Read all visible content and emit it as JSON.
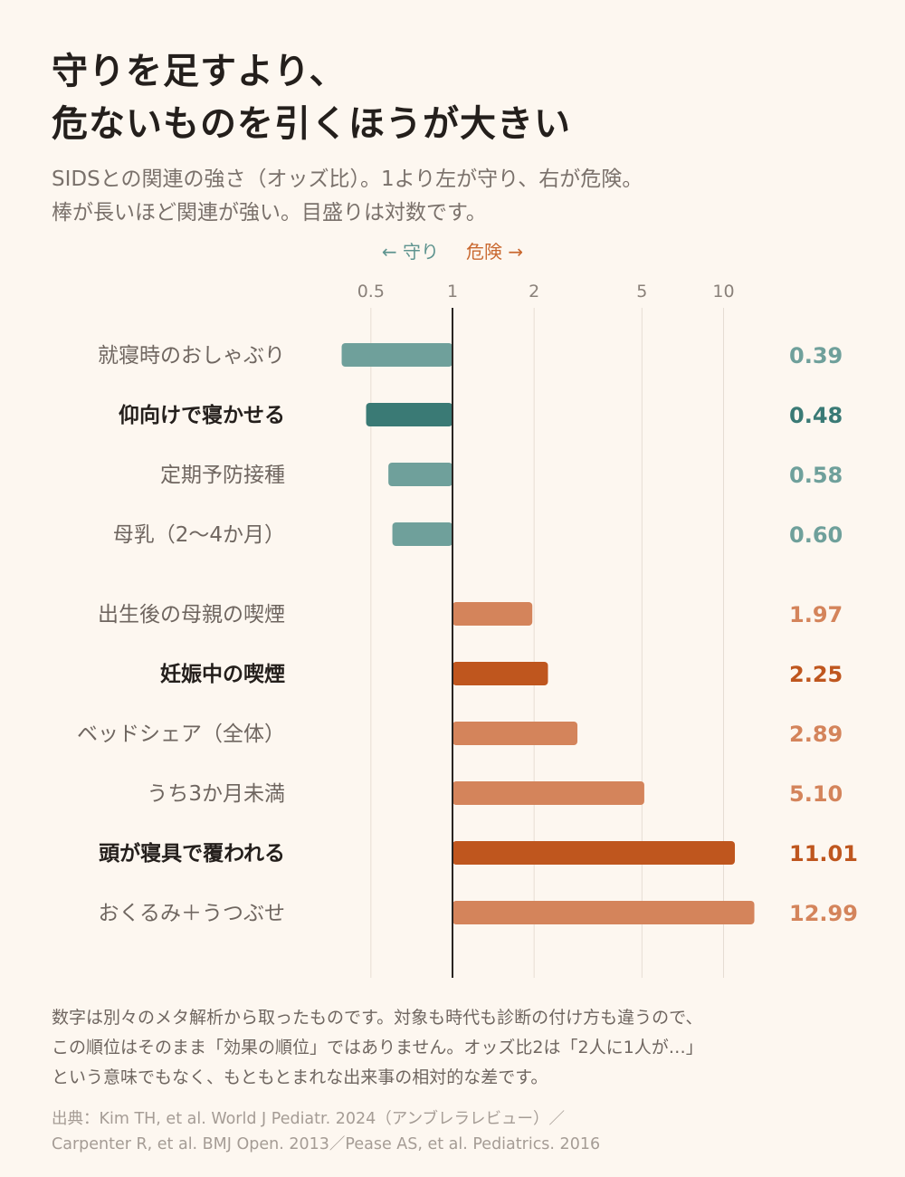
{
  "title": {
    "line1": "守りを足すより、",
    "line2": "危ないものを引くほうが大きい"
  },
  "subtitle": {
    "line1": "SIDSとの関連の強さ（オッズ比）。1より左が守り、右が危険。",
    "line2": "棒が長いほど関連が強い。目盛りは対数です。"
  },
  "direction": {
    "protective": "← 守り",
    "risk": "危険 →"
  },
  "colors": {
    "protective": "#6fa09b",
    "protective_strong": "#3a7a75",
    "risk": "#d4845b",
    "risk_strong": "#bf561e",
    "axis": "#2a2522",
    "grid": "#e6ddd3"
  },
  "chart_data": {
    "type": "bar",
    "orientation": "horizontal",
    "scale": "log",
    "reference_value": 1,
    "xlim": [
      0.3,
      14
    ],
    "ticks": [
      {
        "value": 0.5,
        "label": "0.5"
      },
      {
        "value": 1,
        "label": "1"
      },
      {
        "value": 2,
        "label": "2"
      },
      {
        "value": 5,
        "label": "5"
      },
      {
        "value": 10,
        "label": "10"
      }
    ],
    "grid": true,
    "categories": [
      {
        "label": "就寝時のおしゃぶり",
        "value": 0.39,
        "value_label": "0.39",
        "group": "protective",
        "emphasis": false
      },
      {
        "label": "仰向けで寝かせる",
        "value": 0.48,
        "value_label": "0.48",
        "group": "protective",
        "emphasis": true
      },
      {
        "label": "定期予防接種",
        "value": 0.58,
        "value_label": "0.58",
        "group": "protective",
        "emphasis": false
      },
      {
        "label": "母乳（2〜4か月）",
        "value": 0.6,
        "value_label": "0.60",
        "group": "protective",
        "emphasis": false
      },
      {
        "label": "出生後の母親の喫煙",
        "value": 1.97,
        "value_label": "1.97",
        "group": "risk",
        "emphasis": false
      },
      {
        "label": "妊娠中の喫煙",
        "value": 2.25,
        "value_label": "2.25",
        "group": "risk",
        "emphasis": true
      },
      {
        "label": "ベッドシェア（全体）",
        "value": 2.89,
        "value_label": "2.89",
        "group": "risk",
        "emphasis": false
      },
      {
        "label": "うち3か月未満",
        "value": 5.1,
        "value_label": "5.10",
        "group": "risk",
        "emphasis": false
      },
      {
        "label": "頭が寝具で覆われる",
        "value": 11.01,
        "value_label": "11.01",
        "group": "risk",
        "emphasis": true
      },
      {
        "label": "おくるみ＋うつぶせ",
        "value": 12.99,
        "value_label": "12.99",
        "group": "risk",
        "emphasis": false
      }
    ]
  },
  "note": {
    "line1": "数字は別々のメタ解析から取ったものです。対象も時代も診断の付け方も違うので、",
    "line2": "この順位はそのまま「効果の順位」ではありません。オッズ比2は「2人に1人が…」",
    "line3": "という意味でもなく、もともとまれな出来事の相対的な差です。"
  },
  "source": {
    "line1": "出典：Kim TH, et al. World J Pediatr. 2024（アンブレラレビュー）／",
    "line2": "Carpenter R, et al. BMJ Open. 2013／Pease AS, et al. Pediatrics. 2016"
  }
}
